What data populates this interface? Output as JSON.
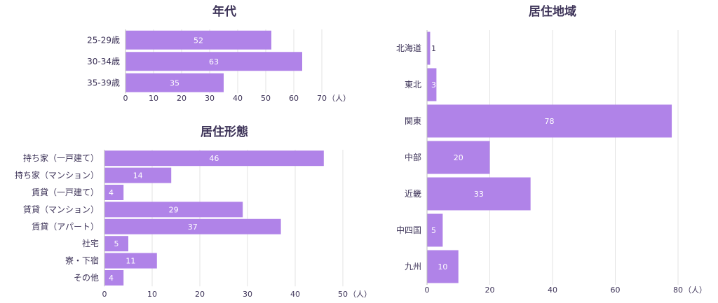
{
  "chart_data": [
    {
      "id": "age",
      "type": "bar",
      "orientation": "horizontal",
      "title": "年代",
      "categories": [
        "25-29歳",
        "30-34歳",
        "35-39歳"
      ],
      "values": [
        52,
        63,
        35
      ],
      "xlim": [
        0,
        70
      ],
      "xticks": [
        0,
        10,
        20,
        30,
        40,
        50,
        60,
        70
      ],
      "unit": "（人）",
      "bar_color": "#b083e8",
      "grid": true
    },
    {
      "id": "housing",
      "type": "bar",
      "orientation": "horizontal",
      "title": "居住形態",
      "categories": [
        "持ち家（一戸建て）",
        "持ち家（マンション）",
        "賃貸（一戸建て）",
        "賃貸（マンション）",
        "賃貸（アパート）",
        "社宅",
        "寮・下宿",
        "その他"
      ],
      "values": [
        46,
        14,
        4,
        29,
        37,
        5,
        11,
        4
      ],
      "xlim": [
        0,
        50
      ],
      "xticks": [
        0,
        10,
        20,
        30,
        40,
        50
      ],
      "unit": "（人）",
      "bar_color": "#b083e8",
      "grid": true
    },
    {
      "id": "region",
      "type": "bar",
      "orientation": "horizontal",
      "title": "居住地域",
      "categories": [
        "北海道",
        "東北",
        "関東",
        "中部",
        "近畿",
        "中四国",
        "九州"
      ],
      "values": [
        1,
        3,
        78,
        20,
        33,
        5,
        10
      ],
      "xlim": [
        0,
        80
      ],
      "xticks": [
        0,
        20,
        40,
        60,
        80
      ],
      "unit": "（人）",
      "bar_color": "#b083e8",
      "grid": true
    }
  ]
}
